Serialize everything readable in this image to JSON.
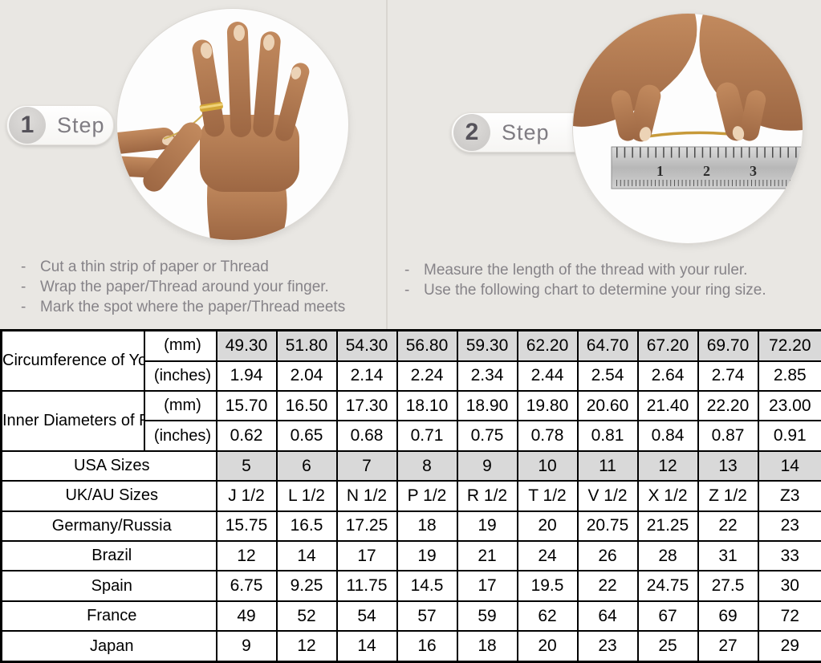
{
  "bullet_marker": "-",
  "colors": {
    "background": "#e9e7e3",
    "table_highlight": "#d9d9d9",
    "table_border": "#000000",
    "instruction_text": "#868388",
    "gold_ring": "#d3a737"
  },
  "steps": [
    {
      "badge_number": "1",
      "badge_label": "Step",
      "bullets": [
        "Cut a thin strip of paper or Thread",
        "Wrap the paper/Thread around your finger.",
        "Mark the spot where the paper/Thread meets"
      ]
    },
    {
      "badge_number": "2",
      "badge_label": "Step",
      "bullets": [
        "Measure the length of the thread with your ruler.",
        "Use the following chart to determine your ring size."
      ]
    }
  ],
  "step2_photo": {
    "ruler_numbers": [
      "1",
      "2",
      "3"
    ]
  },
  "table": {
    "groups": [
      {
        "label": "Circumference of Your Finger",
        "rows": [
          {
            "unit": "(mm)",
            "highlight": true,
            "values": [
              "49.30",
              "51.80",
              "54.30",
              "56.80",
              "59.30",
              "62.20",
              "64.70",
              "67.20",
              "69.70",
              "72.20"
            ]
          },
          {
            "unit": "(inches)",
            "highlight": false,
            "values": [
              "1.94",
              "2.04",
              "2.14",
              "2.24",
              "2.34",
              "2.44",
              "2.54",
              "2.64",
              "2.74",
              "2.85"
            ]
          }
        ]
      },
      {
        "label": "Inner Diameters of Rings",
        "rows": [
          {
            "unit": "(mm)",
            "highlight": false,
            "values": [
              "15.70",
              "16.50",
              "17.30",
              "18.10",
              "18.90",
              "19.80",
              "20.60",
              "21.40",
              "22.20",
              "23.00"
            ]
          },
          {
            "unit": "(inches)",
            "highlight": false,
            "values": [
              "0.62",
              "0.65",
              "0.68",
              "0.71",
              "0.75",
              "0.78",
              "0.81",
              "0.84",
              "0.87",
              "0.91"
            ]
          }
        ]
      }
    ],
    "size_rows": [
      {
        "label": "USA Sizes",
        "highlight": true,
        "values": [
          "5",
          "6",
          "7",
          "8",
          "9",
          "10",
          "11",
          "12",
          "13",
          "14"
        ]
      },
      {
        "label": "UK/AU Sizes",
        "highlight": false,
        "values": [
          "J 1/2",
          "L 1/2",
          "N 1/2",
          "P 1/2",
          "R 1/2",
          "T 1/2",
          "V 1/2",
          "X 1/2",
          "Z 1/2",
          "Z3"
        ]
      },
      {
        "label": "Germany/Russia",
        "highlight": false,
        "values": [
          "15.75",
          "16.5",
          "17.25",
          "18",
          "19",
          "20",
          "20.75",
          "21.25",
          "22",
          "23"
        ]
      },
      {
        "label": "Brazil",
        "highlight": false,
        "values": [
          "12",
          "14",
          "17",
          "19",
          "21",
          "24",
          "26",
          "28",
          "31",
          "33"
        ]
      },
      {
        "label": "Spain",
        "highlight": false,
        "values": [
          "6.75",
          "9.25",
          "11.75",
          "14.5",
          "17",
          "19.5",
          "22",
          "24.75",
          "27.5",
          "30"
        ]
      },
      {
        "label": "France",
        "highlight": false,
        "values": [
          "49",
          "52",
          "54",
          "57",
          "59",
          "62",
          "64",
          "67",
          "69",
          "72"
        ]
      },
      {
        "label": "Japan",
        "highlight": false,
        "values": [
          "9",
          "12",
          "14",
          "16",
          "18",
          "20",
          "23",
          "25",
          "27",
          "29"
        ]
      }
    ]
  }
}
